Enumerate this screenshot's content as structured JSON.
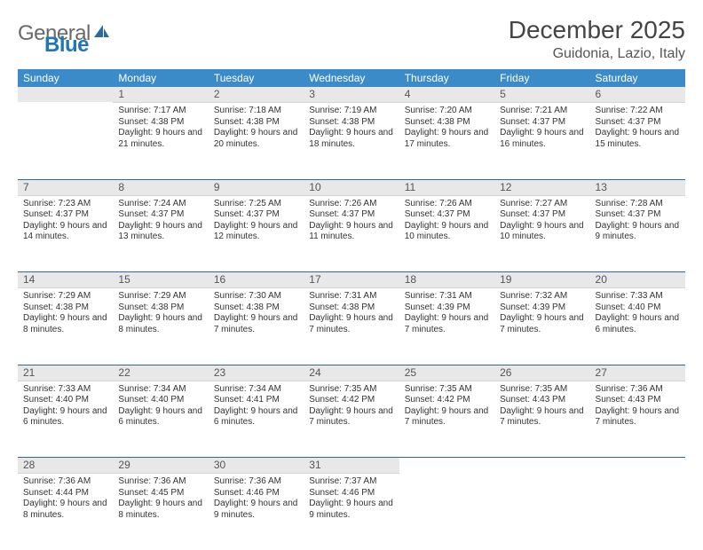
{
  "logo": {
    "word1": "General",
    "word2": "Blue"
  },
  "title": "December 2025",
  "location": "Guidonia, Lazio, Italy",
  "colors": {
    "header_bg": "#3b8bc8",
    "header_text": "#ffffff",
    "daynum_bg": "#e8e8e8",
    "daynum_text": "#555555",
    "body_text": "#333333",
    "rule": "#2b6aa0",
    "logo_gray": "#6a6a6a",
    "logo_blue": "#2176b5",
    "background": "#ffffff"
  },
  "typography": {
    "title_fontsize": 28,
    "location_fontsize": 16,
    "header_fontsize": 12,
    "daynum_fontsize": 12,
    "cell_fontsize": 10
  },
  "day_headers": [
    "Sunday",
    "Monday",
    "Tuesday",
    "Wednesday",
    "Thursday",
    "Friday",
    "Saturday"
  ],
  "weeks": [
    [
      null,
      {
        "n": "1",
        "sr": "Sunrise: 7:17 AM",
        "ss": "Sunset: 4:38 PM",
        "dl": "Daylight: 9 hours and 21 minutes."
      },
      {
        "n": "2",
        "sr": "Sunrise: 7:18 AM",
        "ss": "Sunset: 4:38 PM",
        "dl": "Daylight: 9 hours and 20 minutes."
      },
      {
        "n": "3",
        "sr": "Sunrise: 7:19 AM",
        "ss": "Sunset: 4:38 PM",
        "dl": "Daylight: 9 hours and 18 minutes."
      },
      {
        "n": "4",
        "sr": "Sunrise: 7:20 AM",
        "ss": "Sunset: 4:38 PM",
        "dl": "Daylight: 9 hours and 17 minutes."
      },
      {
        "n": "5",
        "sr": "Sunrise: 7:21 AM",
        "ss": "Sunset: 4:37 PM",
        "dl": "Daylight: 9 hours and 16 minutes."
      },
      {
        "n": "6",
        "sr": "Sunrise: 7:22 AM",
        "ss": "Sunset: 4:37 PM",
        "dl": "Daylight: 9 hours and 15 minutes."
      }
    ],
    [
      {
        "n": "7",
        "sr": "Sunrise: 7:23 AM",
        "ss": "Sunset: 4:37 PM",
        "dl": "Daylight: 9 hours and 14 minutes."
      },
      {
        "n": "8",
        "sr": "Sunrise: 7:24 AM",
        "ss": "Sunset: 4:37 PM",
        "dl": "Daylight: 9 hours and 13 minutes."
      },
      {
        "n": "9",
        "sr": "Sunrise: 7:25 AM",
        "ss": "Sunset: 4:37 PM",
        "dl": "Daylight: 9 hours and 12 minutes."
      },
      {
        "n": "10",
        "sr": "Sunrise: 7:26 AM",
        "ss": "Sunset: 4:37 PM",
        "dl": "Daylight: 9 hours and 11 minutes."
      },
      {
        "n": "11",
        "sr": "Sunrise: 7:26 AM",
        "ss": "Sunset: 4:37 PM",
        "dl": "Daylight: 9 hours and 10 minutes."
      },
      {
        "n": "12",
        "sr": "Sunrise: 7:27 AM",
        "ss": "Sunset: 4:37 PM",
        "dl": "Daylight: 9 hours and 10 minutes."
      },
      {
        "n": "13",
        "sr": "Sunrise: 7:28 AM",
        "ss": "Sunset: 4:37 PM",
        "dl": "Daylight: 9 hours and 9 minutes."
      }
    ],
    [
      {
        "n": "14",
        "sr": "Sunrise: 7:29 AM",
        "ss": "Sunset: 4:38 PM",
        "dl": "Daylight: 9 hours and 8 minutes."
      },
      {
        "n": "15",
        "sr": "Sunrise: 7:29 AM",
        "ss": "Sunset: 4:38 PM",
        "dl": "Daylight: 9 hours and 8 minutes."
      },
      {
        "n": "16",
        "sr": "Sunrise: 7:30 AM",
        "ss": "Sunset: 4:38 PM",
        "dl": "Daylight: 9 hours and 7 minutes."
      },
      {
        "n": "17",
        "sr": "Sunrise: 7:31 AM",
        "ss": "Sunset: 4:38 PM",
        "dl": "Daylight: 9 hours and 7 minutes."
      },
      {
        "n": "18",
        "sr": "Sunrise: 7:31 AM",
        "ss": "Sunset: 4:39 PM",
        "dl": "Daylight: 9 hours and 7 minutes."
      },
      {
        "n": "19",
        "sr": "Sunrise: 7:32 AM",
        "ss": "Sunset: 4:39 PM",
        "dl": "Daylight: 9 hours and 7 minutes."
      },
      {
        "n": "20",
        "sr": "Sunrise: 7:33 AM",
        "ss": "Sunset: 4:40 PM",
        "dl": "Daylight: 9 hours and 6 minutes."
      }
    ],
    [
      {
        "n": "21",
        "sr": "Sunrise: 7:33 AM",
        "ss": "Sunset: 4:40 PM",
        "dl": "Daylight: 9 hours and 6 minutes."
      },
      {
        "n": "22",
        "sr": "Sunrise: 7:34 AM",
        "ss": "Sunset: 4:40 PM",
        "dl": "Daylight: 9 hours and 6 minutes."
      },
      {
        "n": "23",
        "sr": "Sunrise: 7:34 AM",
        "ss": "Sunset: 4:41 PM",
        "dl": "Daylight: 9 hours and 6 minutes."
      },
      {
        "n": "24",
        "sr": "Sunrise: 7:35 AM",
        "ss": "Sunset: 4:42 PM",
        "dl": "Daylight: 9 hours and 7 minutes."
      },
      {
        "n": "25",
        "sr": "Sunrise: 7:35 AM",
        "ss": "Sunset: 4:42 PM",
        "dl": "Daylight: 9 hours and 7 minutes."
      },
      {
        "n": "26",
        "sr": "Sunrise: 7:35 AM",
        "ss": "Sunset: 4:43 PM",
        "dl": "Daylight: 9 hours and 7 minutes."
      },
      {
        "n": "27",
        "sr": "Sunrise: 7:36 AM",
        "ss": "Sunset: 4:43 PM",
        "dl": "Daylight: 9 hours and 7 minutes."
      }
    ],
    [
      {
        "n": "28",
        "sr": "Sunrise: 7:36 AM",
        "ss": "Sunset: 4:44 PM",
        "dl": "Daylight: 9 hours and 8 minutes."
      },
      {
        "n": "29",
        "sr": "Sunrise: 7:36 AM",
        "ss": "Sunset: 4:45 PM",
        "dl": "Daylight: 9 hours and 8 minutes."
      },
      {
        "n": "30",
        "sr": "Sunrise: 7:36 AM",
        "ss": "Sunset: 4:46 PM",
        "dl": "Daylight: 9 hours and 9 minutes."
      },
      {
        "n": "31",
        "sr": "Sunrise: 7:37 AM",
        "ss": "Sunset: 4:46 PM",
        "dl": "Daylight: 9 hours and 9 minutes."
      },
      null,
      null,
      null
    ]
  ]
}
